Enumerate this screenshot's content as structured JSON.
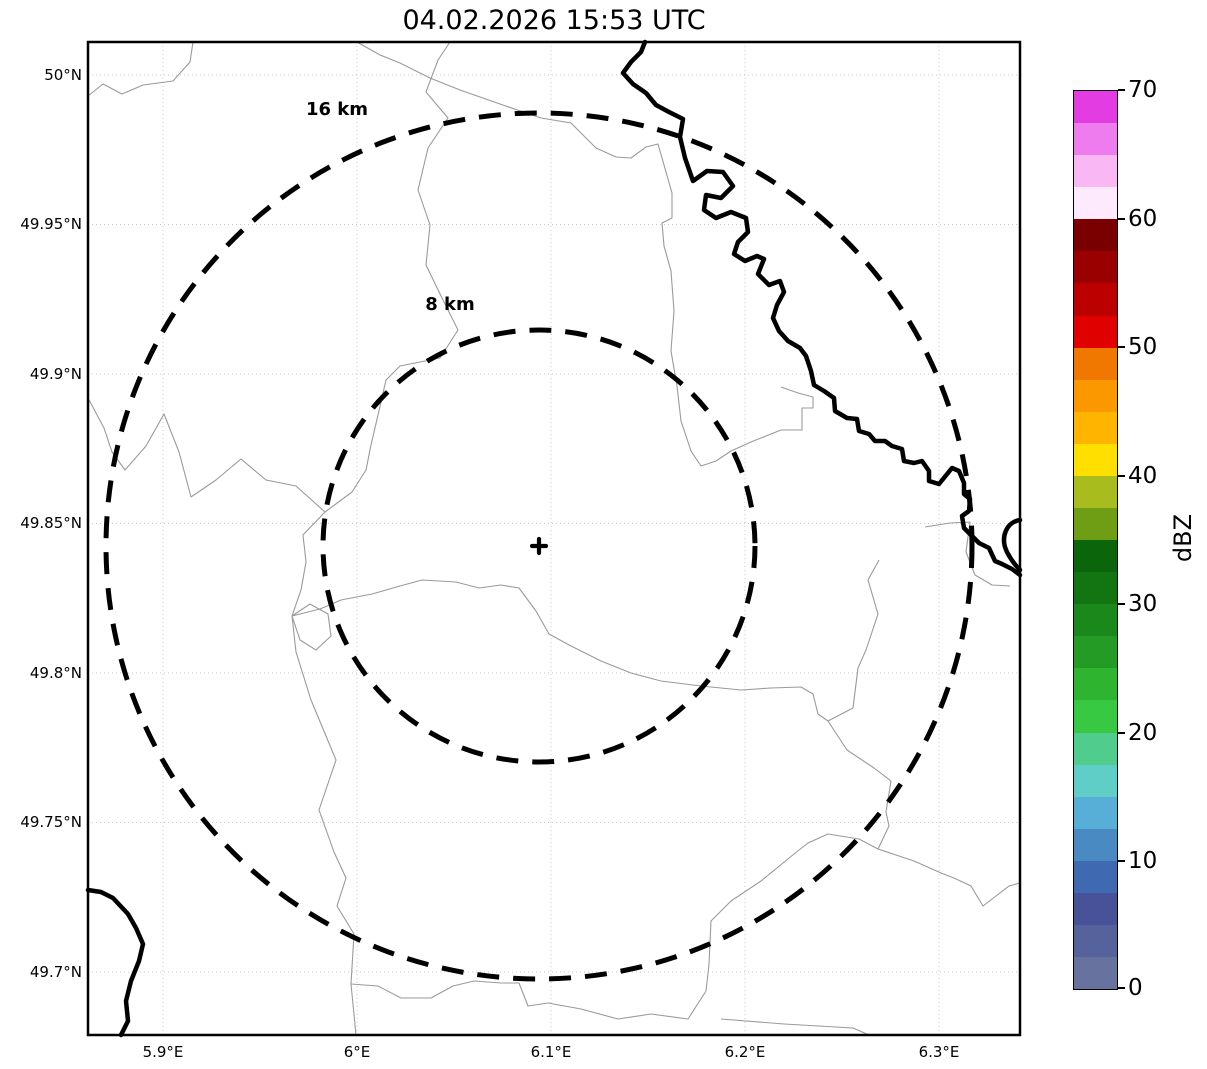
{
  "title": "04.02.2026 15:53 UTC",
  "axes": {
    "x_ticks": [
      "5.9°E",
      "6°E",
      "6.1°E",
      "6.2°E",
      "6.3°E"
    ],
    "y_ticks": [
      "50°N",
      "49.95°N",
      "49.9°N",
      "49.85°N",
      "49.8°N",
      "49.75°N",
      "49.7°N"
    ]
  },
  "range_rings": {
    "outer_label": "16 km",
    "inner_label": "8 km"
  },
  "radar_marker": "+",
  "colorbar": {
    "axis_label": "dBZ",
    "tick_labels": [
      "70",
      "60",
      "50",
      "40",
      "30",
      "20",
      "10",
      "0"
    ],
    "min": 0,
    "max": 70,
    "segment_colors_bottom_to_top": [
      "#67739e",
      "#55629c",
      "#475299",
      "#3f69b0",
      "#4a8ac2",
      "#57aed6",
      "#5ecec6",
      "#50cc8c",
      "#38c942",
      "#2eb42e",
      "#249b24",
      "#1b881b",
      "#127512",
      "#0b660b",
      "#6f9e14",
      "#a9bc1e",
      "#ffdf00",
      "#ffb400",
      "#fb9800",
      "#f07800",
      "#e00000",
      "#bc0000",
      "#9a0000",
      "#7a0000",
      "#fdeafd",
      "#f9b8f4",
      "#ef7cee",
      "#e23ce2"
    ]
  },
  "colors": {
    "background": "#ffffff",
    "grid": "#c9c9c9",
    "municipal_boundary": "#9a9a9a",
    "national_border": "#000000",
    "range_ring": "#000000"
  }
}
